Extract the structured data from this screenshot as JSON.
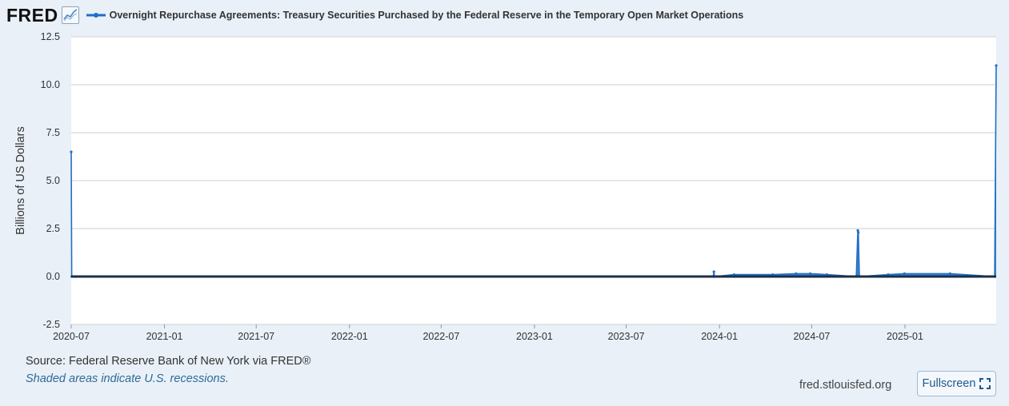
{
  "header": {
    "logo_text": "FRED",
    "legend_label": "Overnight Repurchase Agreements: Treasury Securities Purchased by the Federal Reserve in the Temporary Open Market Operations"
  },
  "footer": {
    "source": "Source: Federal Reserve Bank of New York via FRED®",
    "note": "Shaded areas indicate U.S. recessions.",
    "site": "fred.stlouisfed.org",
    "fullscreen_label": "Fullscreen"
  },
  "colors": {
    "series": "#1f6fc5",
    "background": "#e9f0f8",
    "plot_bg": "#ffffff",
    "grid": "#cfcfcf",
    "zero_line": "#1c2f46"
  },
  "chart_data": {
    "type": "line",
    "title": "",
    "xlabel": "",
    "ylabel": "Billions of US Dollars",
    "ylim": [
      -2.5,
      12.5
    ],
    "yticks": [
      "12.5",
      "10.0",
      "7.5",
      "5.0",
      "2.5",
      "0.0",
      "-2.5"
    ],
    "xlim": [
      "2020-07-01",
      "2025-06-30"
    ],
    "xticks": [
      "2020-07",
      "2021-01",
      "2021-07",
      "2022-01",
      "2022-07",
      "2023-01",
      "2023-07",
      "2024-01",
      "2024-07",
      "2025-01"
    ],
    "grid": true,
    "series": [
      {
        "name": "Overnight Repurchase Agreements: Treasury Securities Purchased by the Federal Reserve in the Temporary Open Market Operations",
        "x": [
          "2020-07-01",
          "2020-07-02",
          "2020-07-10",
          "2023-12-20",
          "2023-12-21",
          "2023-12-22",
          "2024-01-30",
          "2024-04-15",
          "2024-05-31",
          "2024-06-28",
          "2024-07-31",
          "2024-09-27",
          "2024-09-30",
          "2024-10-01",
          "2024-10-03",
          "2024-11-29",
          "2024-12-31",
          "2025-03-31",
          "2025-06-27",
          "2025-06-30"
        ],
        "values": [
          6.5,
          0.0,
          0.0,
          0.0,
          0.25,
          0.0,
          0.1,
          0.1,
          0.15,
          0.15,
          0.1,
          0.0,
          2.4,
          2.3,
          0.0,
          0.1,
          0.15,
          0.15,
          0.0,
          11.0
        ]
      }
    ]
  }
}
